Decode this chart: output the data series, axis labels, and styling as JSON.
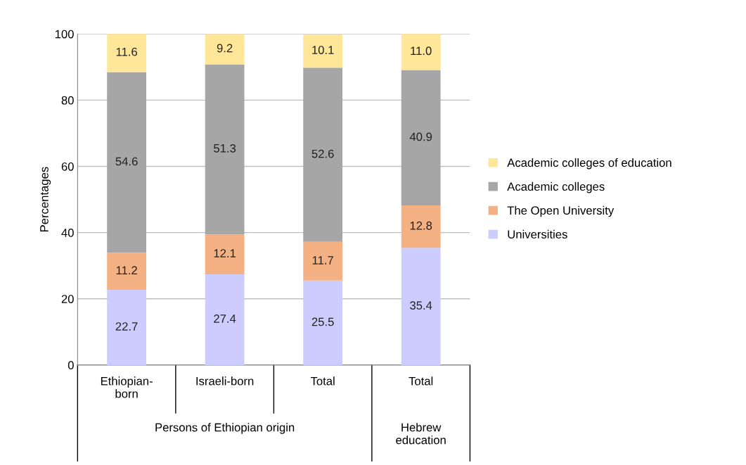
{
  "chart_data": {
    "type": "bar",
    "stacked": true,
    "ylabel": "Percentages",
    "categories": [
      "Ethiopian-born",
      "Israeli-born",
      "Total",
      "Total"
    ],
    "series": [
      {
        "name": "Universities",
        "color": "#ccccff",
        "values": [
          22.7,
          27.4,
          25.5,
          35.4
        ],
        "value_labels": [
          "22.7",
          "27.4",
          "25.5",
          "35.4"
        ]
      },
      {
        "name": "The Open University",
        "color": "#f4b183",
        "values": [
          11.2,
          12.1,
          11.7,
          12.8
        ],
        "value_labels": [
          "11.2",
          "12.1",
          "11.7",
          "12.8"
        ]
      },
      {
        "name": "Academic colleges",
        "color": "#a6a6a6",
        "values": [
          54.6,
          51.3,
          52.6,
          40.9
        ],
        "value_labels": [
          "54.6",
          "51.3",
          "52.6",
          "40.9"
        ]
      },
      {
        "name": "Academic colleges of education",
        "color": "#ffe699",
        "values": [
          11.6,
          9.2,
          10.1,
          11.0
        ],
        "value_labels": [
          "11.6",
          "9.2",
          "10.1",
          "11.0"
        ]
      }
    ],
    "ylim": [
      0,
      100
    ],
    "yticks": [
      0,
      20,
      40,
      60,
      80,
      100
    ],
    "grid": "y",
    "legend": "right",
    "annotations": [
      "Persons of Ethiopian origin",
      "Hebrew education"
    ]
  }
}
